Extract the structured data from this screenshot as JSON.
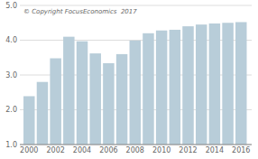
{
  "chart_data": {
    "type": "bar",
    "annotation": "© Copyright FocusEconomics  2017",
    "x": [
      2000,
      2001,
      2002,
      2003,
      2004,
      2005,
      2006,
      2007,
      2008,
      2009,
      2010,
      2011,
      2012,
      2013,
      2014,
      2015,
      2016
    ],
    "values": [
      2.39,
      2.8,
      3.48,
      4.1,
      3.97,
      3.62,
      3.34,
      3.6,
      3.99,
      4.2,
      4.28,
      4.3,
      4.4,
      4.45,
      4.48,
      4.5,
      4.52
    ],
    "color": "#b8cdd9",
    "xlim": [
      1999.3,
      2016.8
    ],
    "xticks": [
      2000,
      2002,
      2004,
      2006,
      2008,
      2010,
      2012,
      2014,
      2016
    ],
    "ylim": [
      1.0,
      5.0
    ],
    "yticks": [
      {
        "value": 1.0,
        "label": "1.0"
      },
      {
        "value": 2.0,
        "label": "2.0"
      },
      {
        "value": 3.0,
        "label": "3.0"
      },
      {
        "value": 4.0,
        "label": "4.0"
      },
      {
        "value": 5.0,
        "label": "5.0"
      }
    ],
    "grid": true
  }
}
